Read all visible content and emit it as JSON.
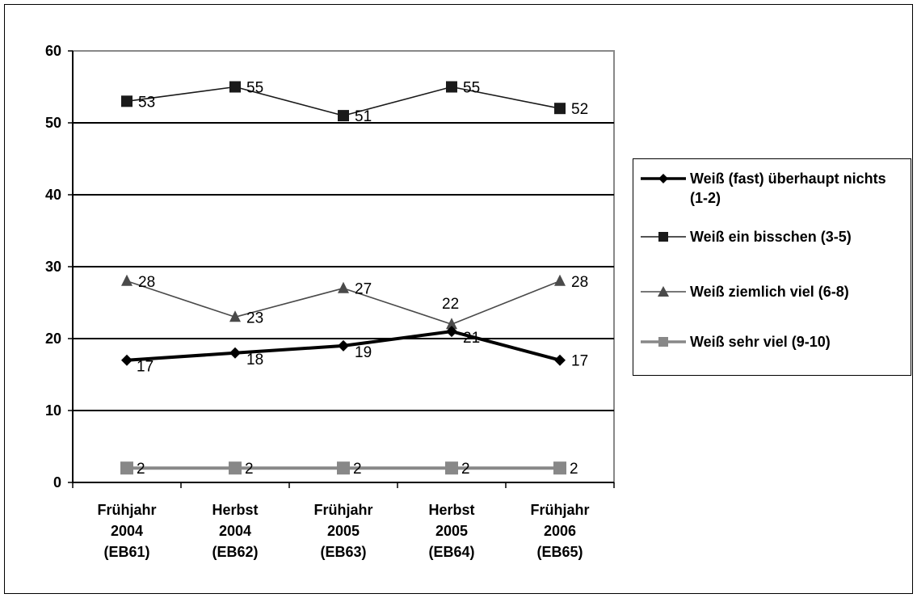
{
  "chart_data": {
    "type": "line",
    "categories": [
      [
        "Frühjahr",
        "2004",
        "(EB61)"
      ],
      [
        "Herbst",
        "2004",
        "(EB62)"
      ],
      [
        "Frühjahr",
        "2005",
        "(EB63)"
      ],
      [
        "Herbst",
        "2005",
        "(EB64)"
      ],
      [
        "Frühjahr",
        "2006",
        "(EB65)"
      ]
    ],
    "ylim": [
      0,
      60
    ],
    "yticks": [
      0,
      10,
      20,
      30,
      40,
      50,
      60
    ],
    "grid": true,
    "legend_position": "right",
    "series": [
      {
        "name": "Weiß (fast) überhaupt nichts (1-2)",
        "values": [
          17,
          18,
          19,
          21,
          17
        ],
        "marker": "diamond",
        "color": "#000000",
        "line_weight": "heavy"
      },
      {
        "name": "Weiß ein bisschen (3-5)",
        "values": [
          53,
          55,
          51,
          55,
          52
        ],
        "marker": "square",
        "color": "#1a1a1a",
        "line_weight": "thin"
      },
      {
        "name": "Weiß ziemlich viel (6-8)",
        "values": [
          28,
          23,
          27,
          22,
          28
        ],
        "marker": "triangle",
        "color": "#4a4a4a",
        "line_weight": "thin"
      },
      {
        "name": "Weiß sehr viel (9-10)",
        "values": [
          2,
          2,
          2,
          2,
          2
        ],
        "marker": "square",
        "color": "#888888",
        "line_weight": "heavy"
      }
    ]
  }
}
